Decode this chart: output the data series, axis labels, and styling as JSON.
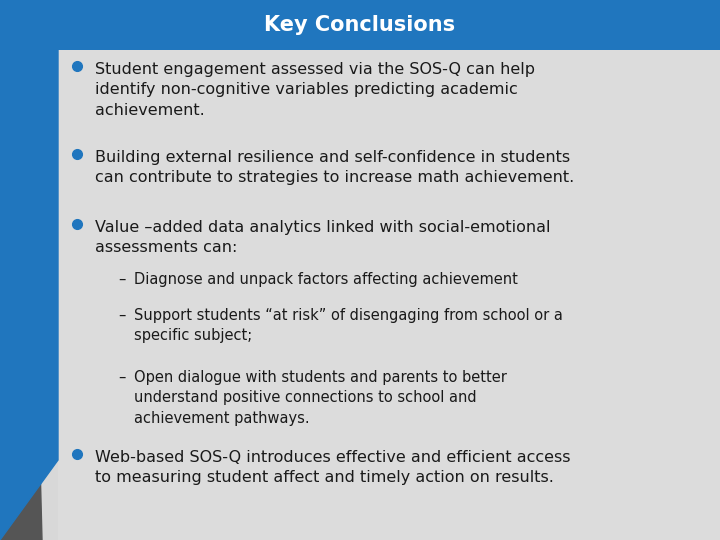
{
  "title": "Key Conclusions",
  "title_bg_color": "#2076be",
  "title_text_color": "#ffffff",
  "bg_color": "#d0d0d0",
  "content_bg_color": "#d8d8d8",
  "bullet_color": "#2076be",
  "text_color": "#1a1a1a",
  "bullets": [
    "Student engagement assessed via the SOS-Q can help\nidentify non-cognitive variables predicting academic\nachievement.",
    "Building external resilience and self-confidence in students\ncan contribute to strategies to increase math achievement.",
    "Value –added data analytics linked with social-emotional\nassessments can:",
    "Web-based SOS-Q introduces effective and efficient access\nto measuring student affect and timely action on results."
  ],
  "sub_bullets": [
    "Diagnose and unpack factors affecting achievement",
    "Support students “at risk” of disengaging from school or a\nspecific subject;",
    "Open dialogue with students and parents to better\nunderstand positive connections to school and\nachievement pathways."
  ],
  "font_family": "DejaVu Sans",
  "title_fontsize": 15,
  "bullet_fontsize": 11.5,
  "sub_bullet_fontsize": 10.5,
  "stripe_blue": "#2076be",
  "stripe_gray": "#555555"
}
